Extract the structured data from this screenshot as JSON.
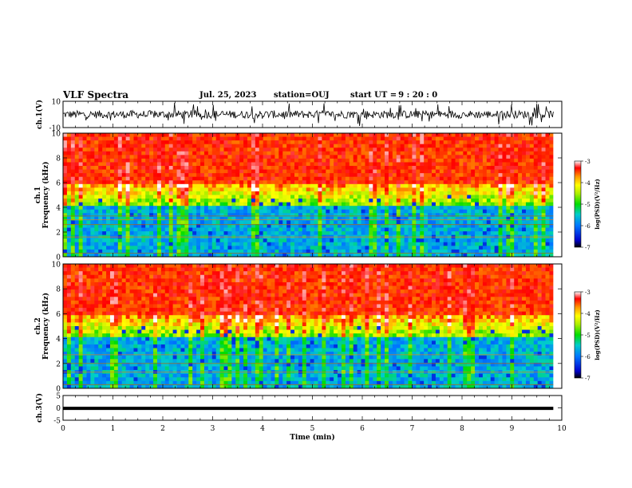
{
  "header": {
    "title": "VLF Spectra",
    "date": "Jul. 25, 2023",
    "station_label": "station=",
    "station": "OUJ",
    "start_label": "start  UT =",
    "start_time": "9 : 20 : 0"
  },
  "chart_data": [
    {
      "type": "line",
      "name": "ch1-waveform",
      "ylabel": "ch.1(V)",
      "ylim": [
        -10,
        10
      ],
      "yticks": [
        "10",
        "-10"
      ],
      "xlim": [
        0,
        10
      ],
      "trace_color": "#000000",
      "x_end": 9.83
    },
    {
      "type": "heatmap",
      "name": "ch1-spectrogram",
      "ylabel": "ch.1\nFrequency  (kHz)",
      "ylim": [
        0,
        10
      ],
      "yticks": [
        "0",
        "2",
        "4",
        "6",
        "8",
        "10"
      ],
      "xlim": [
        0,
        10
      ],
      "x_end": 9.83,
      "colorbar": {
        "label": "log(PSD)(V²/Hz)",
        "range": [
          -7,
          -3
        ],
        "ticks": [
          "-3",
          "-4",
          "-5",
          "-6",
          "-7"
        ]
      },
      "spectral_lines_khz": [
        0.3,
        1.6,
        2.6,
        3.0,
        3.3
      ]
    },
    {
      "type": "heatmap",
      "name": "ch2-spectrogram",
      "ylabel": "ch.2\nFrequency  (kHz)",
      "ylim": [
        0,
        10
      ],
      "yticks": [
        "0",
        "2",
        "4",
        "6",
        "8",
        "10"
      ],
      "xlim": [
        0,
        10
      ],
      "x_end": 9.83,
      "colorbar": {
        "label": "log(PSD)(V²/Hz)",
        "range": [
          -7,
          -3
        ],
        "ticks": [
          "-3",
          "-4",
          "-5",
          "-6",
          "-7"
        ]
      },
      "spectral_lines_khz": [
        0.3,
        1.3,
        2.0,
        2.7
      ]
    },
    {
      "type": "line",
      "name": "ch3-waveform",
      "ylabel": "ch.3(V)",
      "ylim": [
        -5,
        5
      ],
      "yticks": [
        "5",
        "0",
        "-5"
      ],
      "xlim": [
        0,
        10
      ],
      "xticks": [
        "0",
        "1",
        "2",
        "3",
        "4",
        "5",
        "6",
        "7",
        "8",
        "9",
        "10"
      ],
      "xlabel": "Time  (min)",
      "constant_value": -0.2,
      "x_end": 9.83,
      "trace_color": "#000000"
    }
  ]
}
